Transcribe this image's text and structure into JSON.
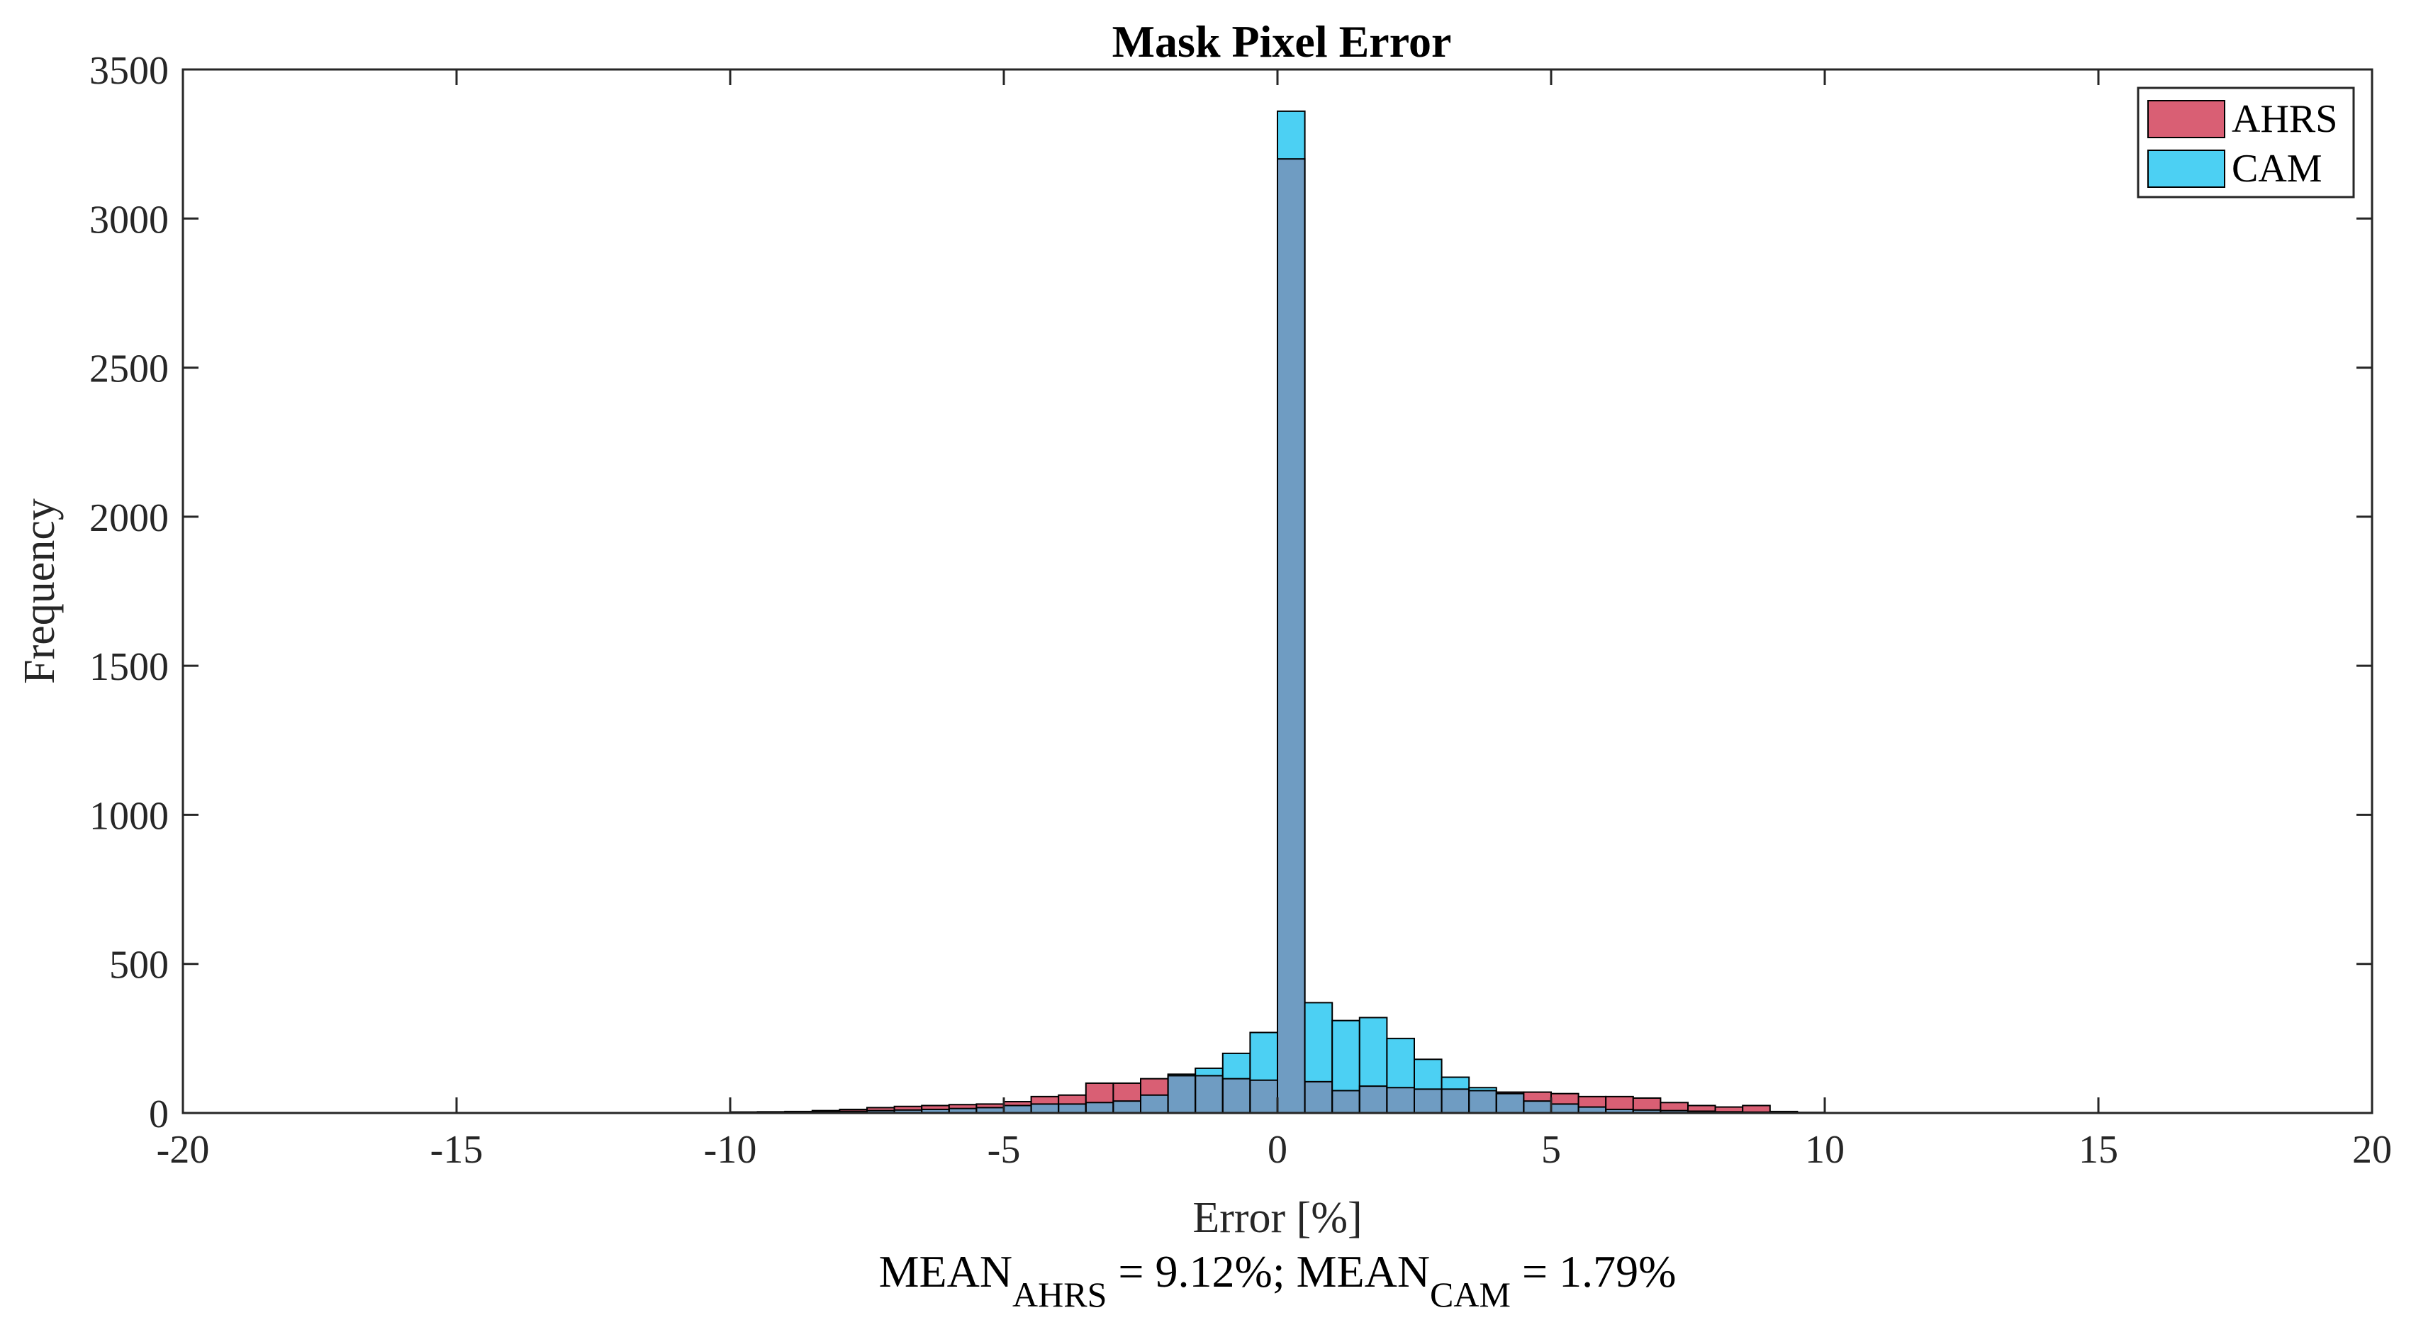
{
  "chart_data": {
    "type": "bar",
    "title": "Mask Pixel Error",
    "xlabel": "Error [%]",
    "ylabel": "Frequency",
    "xlim": [
      -20,
      20
    ],
    "ylim": [
      0,
      3500
    ],
    "x_ticks": [
      -20,
      -15,
      -10,
      -5,
      0,
      5,
      10,
      15,
      20
    ],
    "y_ticks": [
      0,
      500,
      1000,
      1500,
      2000,
      2500,
      3000,
      3500
    ],
    "x_tick_labels": [
      "-20",
      "-15",
      "-10",
      "-5",
      "0",
      "5",
      "10",
      "15",
      "20"
    ],
    "y_tick_labels": [
      "0",
      "500",
      "1000",
      "1500",
      "2000",
      "2500",
      "3000",
      "3500"
    ],
    "bin_width": 0.5,
    "bin_starts": [
      -10,
      -9.5,
      -9,
      -8.5,
      -8,
      -7.5,
      -7,
      -6.5,
      -6,
      -5.5,
      -5,
      -4.5,
      -4,
      -3.5,
      -3,
      -2.5,
      -2,
      -1.5,
      -1,
      -0.5,
      0,
      0.5,
      1,
      1.5,
      2,
      2.5,
      3,
      3.5,
      4,
      4.5,
      5,
      5.5,
      6,
      6.5,
      7,
      7.5,
      8,
      8.5,
      9,
      9.5
    ],
    "series": [
      {
        "name": "AHRS",
        "color": "#d95f74",
        "values": [
          3,
          4,
          5,
          8,
          12,
          18,
          22,
          25,
          28,
          30,
          38,
          55,
          60,
          100,
          100,
          115,
          125,
          125,
          115,
          110,
          3200,
          105,
          75,
          90,
          85,
          80,
          80,
          75,
          70,
          70,
          65,
          55,
          55,
          50,
          35,
          25,
          20,
          25,
          5,
          2
        ]
      },
      {
        "name": "CAM",
        "color": "#4cd0f3",
        "values": [
          3,
          3,
          4,
          5,
          6,
          8,
          10,
          12,
          15,
          18,
          25,
          30,
          30,
          35,
          40,
          60,
          130,
          150,
          200,
          270,
          3360,
          370,
          310,
          320,
          250,
          180,
          120,
          85,
          65,
          40,
          30,
          20,
          12,
          10,
          8,
          6,
          4,
          3,
          2,
          1
        ]
      }
    ],
    "overlap_color": "#6f9cc2",
    "legend": [
      "AHRS",
      "CAM"
    ],
    "legend_position": "top-right",
    "grid": false,
    "annotation": {
      "text_1": "MEAN",
      "sub_1": "AHRS",
      "text_2": " = 9.12%; MEAN",
      "sub_2": "CAM",
      "text_3": " = 1.79%"
    }
  }
}
